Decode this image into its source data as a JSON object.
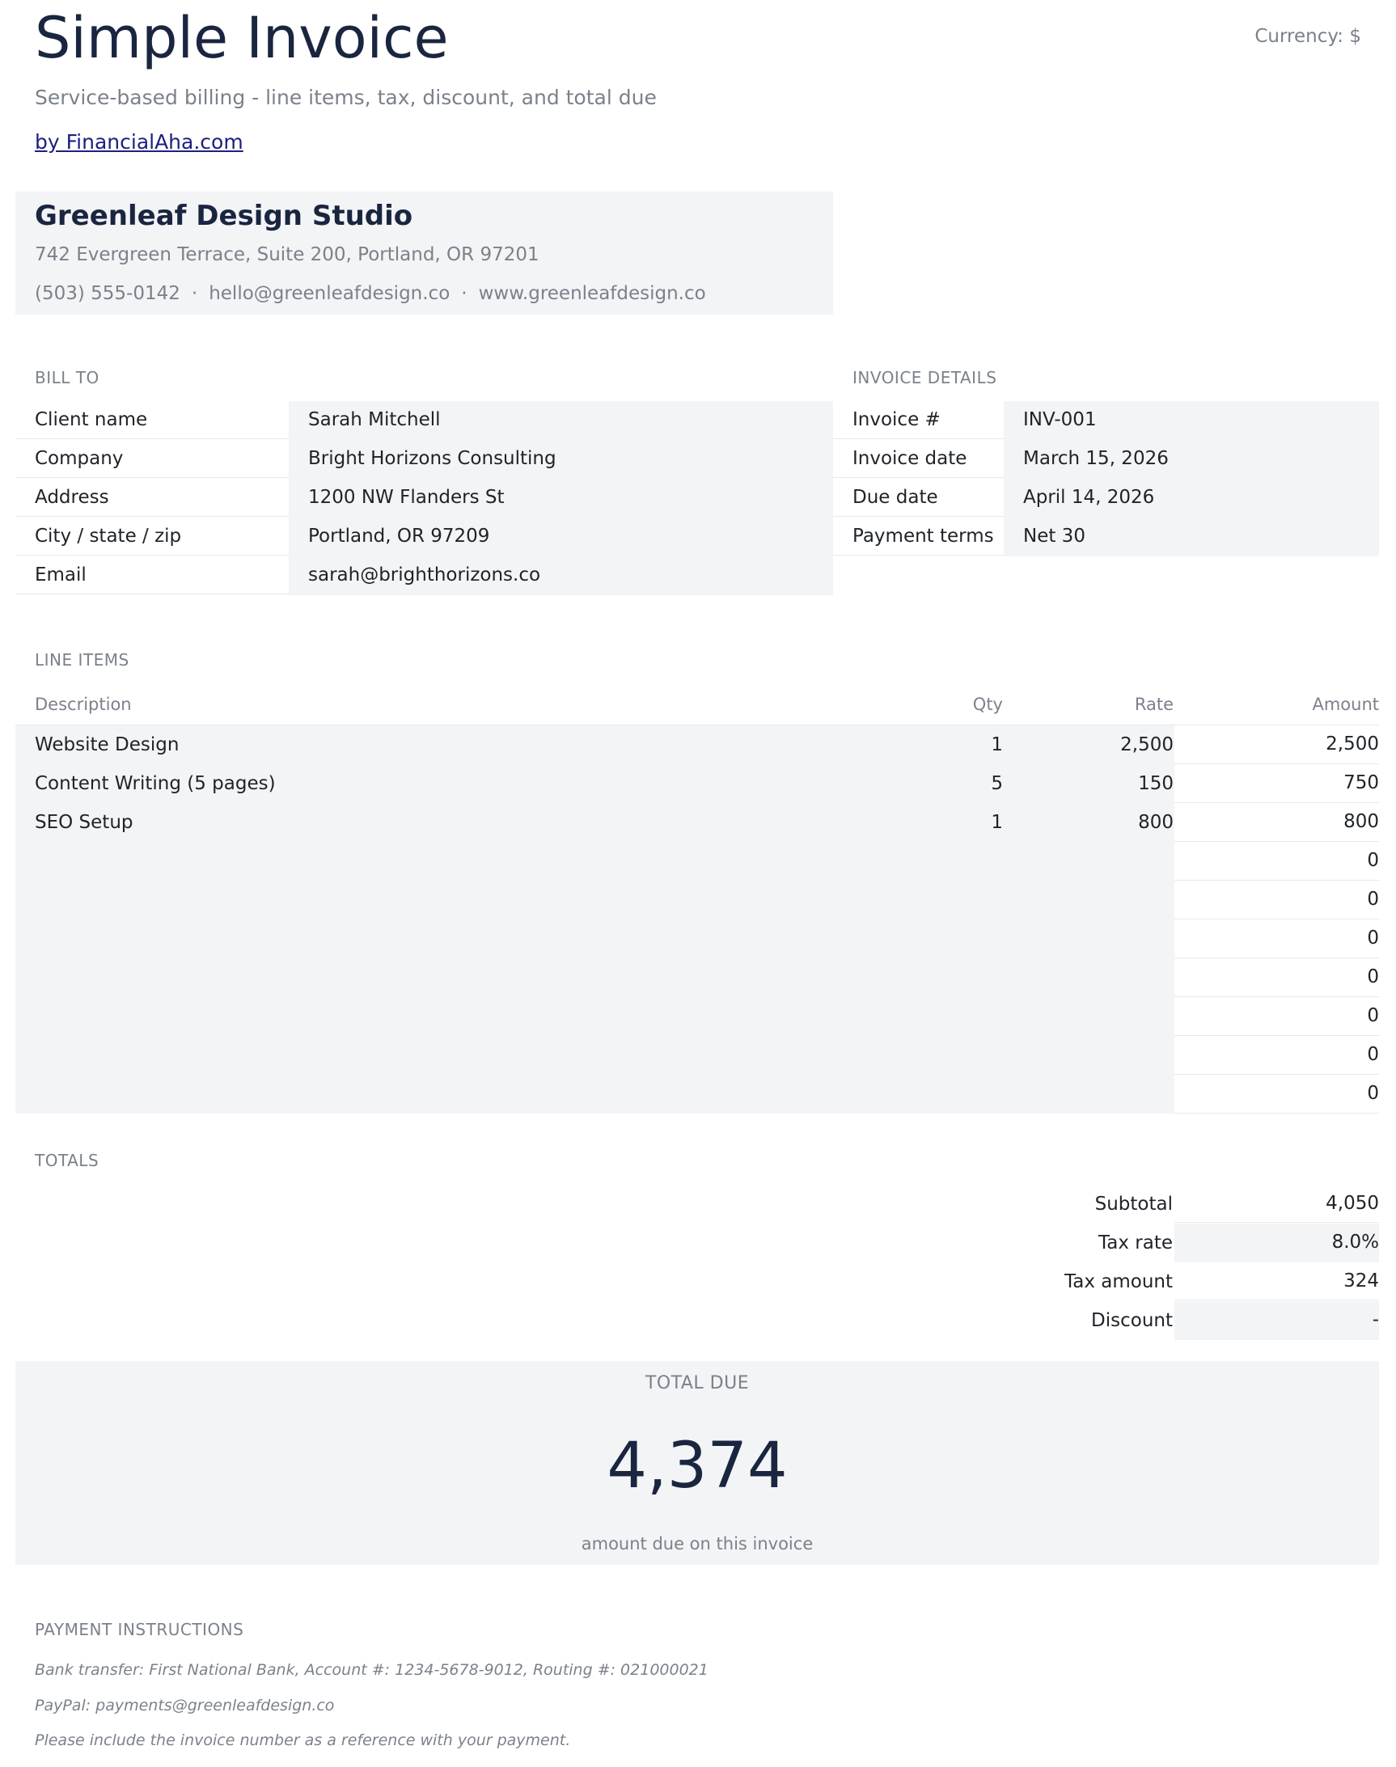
{
  "header": {
    "title": "Simple Invoice",
    "currency": "Currency: $",
    "subtitle": "Service-based billing - line items, tax, discount, and total due",
    "link": "by FinancialAha.com"
  },
  "company": {
    "name": "Greenleaf Design Studio",
    "address": "742 Evergreen Terrace, Suite 200, Portland, OR 97201",
    "phone": "(503) 555-0142",
    "separator": "·",
    "email": "hello@greenleafdesign.co",
    "website": "www.greenleafdesign.co"
  },
  "bill_to": {
    "label": "BILL TO",
    "rows": [
      {
        "label": "Client name",
        "value": "Sarah Mitchell"
      },
      {
        "label": "Company",
        "value": "Bright Horizons Consulting"
      },
      {
        "label": "Address",
        "value": "1200 NW Flanders St"
      },
      {
        "label": "City / state / zip",
        "value": "Portland, OR 97209"
      },
      {
        "label": "Email",
        "value": "sarah@brighthorizons.co"
      }
    ]
  },
  "invoice_details": {
    "label": "INVOICE DETAILS",
    "rows": [
      {
        "label": "Invoice #",
        "value": "INV-001"
      },
      {
        "label": "Invoice date",
        "value": "March 15, 2026"
      },
      {
        "label": "Due date",
        "value": "April 14, 2026"
      },
      {
        "label": "Payment terms",
        "value": "Net 30"
      }
    ]
  },
  "line_items": {
    "label": "LINE ITEMS",
    "columns": {
      "description": "Description",
      "qty": "Qty",
      "rate": "Rate",
      "amount": "Amount"
    },
    "rows": [
      {
        "description": "Website Design",
        "qty": "1",
        "rate": "2,500",
        "amount": "2,500"
      },
      {
        "description": "Content Writing (5 pages)",
        "qty": "5",
        "rate": "150",
        "amount": "750"
      },
      {
        "description": "SEO Setup",
        "qty": "1",
        "rate": "800",
        "amount": "800"
      },
      {
        "description": "",
        "qty": "",
        "rate": "",
        "amount": "0"
      },
      {
        "description": "",
        "qty": "",
        "rate": "",
        "amount": "0"
      },
      {
        "description": "",
        "qty": "",
        "rate": "",
        "amount": "0"
      },
      {
        "description": "",
        "qty": "",
        "rate": "",
        "amount": "0"
      },
      {
        "description": "",
        "qty": "",
        "rate": "",
        "amount": "0"
      },
      {
        "description": "",
        "qty": "",
        "rate": "",
        "amount": "0"
      },
      {
        "description": "",
        "qty": "",
        "rate": "",
        "amount": "0"
      }
    ]
  },
  "totals": {
    "label": "TOTALS",
    "rows": [
      {
        "label": "Subtotal",
        "value": "4,050"
      },
      {
        "label": "Tax rate",
        "value": "8.0%"
      },
      {
        "label": "Tax amount",
        "value": "324"
      },
      {
        "label": "Discount",
        "value": "-"
      }
    ]
  },
  "total_due": {
    "label": "TOTAL DUE",
    "amount": "4,374",
    "caption": "amount due on this invoice"
  },
  "payment": {
    "label": "PAYMENT INSTRUCTIONS",
    "lines": [
      "Bank transfer: First National Bank, Account #: 1234-5678-9012, Routing #: 021000021",
      "PayPal: payments@greenleafdesign.co",
      "Please include the invoice number as a reference with your payment."
    ]
  },
  "colors": {
    "navy": "#1a2540",
    "muted": "#7b818b",
    "shade": "#f2f4f6",
    "link": "#1d2080"
  }
}
